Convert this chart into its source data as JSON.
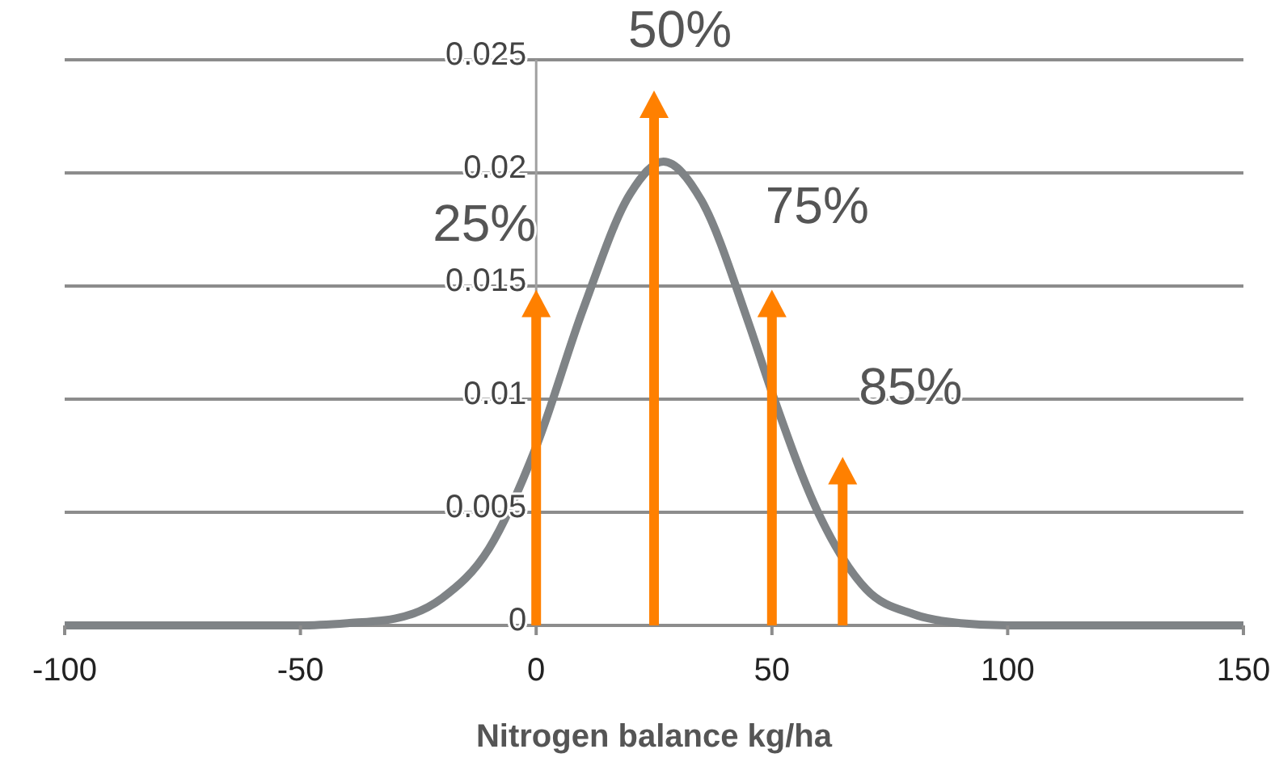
{
  "chart_data": {
    "type": "line",
    "xlabel": "Nitrogen balance kg/ha",
    "xlim": [
      -100,
      150
    ],
    "xticks": [
      -100,
      -50,
      0,
      50,
      100,
      150
    ],
    "ylim": [
      0,
      0.025
    ],
    "yticks": [
      0,
      0.005,
      0.01,
      0.015,
      0.02,
      0.025
    ],
    "grid": "y",
    "series": [
      {
        "color": "#7f8386",
        "x": [
          -100,
          -50,
          -40,
          -30,
          -20,
          -10,
          0,
          10,
          20,
          27,
          35,
          45,
          50,
          60,
          70,
          80,
          90,
          100,
          150
        ],
        "values": [
          0,
          0,
          0.0001,
          0.0003,
          0.0012,
          0.0034,
          0.0079,
          0.014,
          0.0191,
          0.0205,
          0.0188,
          0.0134,
          0.0103,
          0.0049,
          0.0016,
          0.0005,
          0.0001,
          0,
          0
        ]
      },
      {
        "type": "bar",
        "color": "#ff8000",
        "x": [
          0,
          25,
          50,
          65
        ],
        "values": [
          0.0137,
          0.0225,
          0.0137,
          0.0063
        ]
      }
    ],
    "annotations": [
      "25%",
      "50%",
      "75%",
      "85%"
    ]
  }
}
